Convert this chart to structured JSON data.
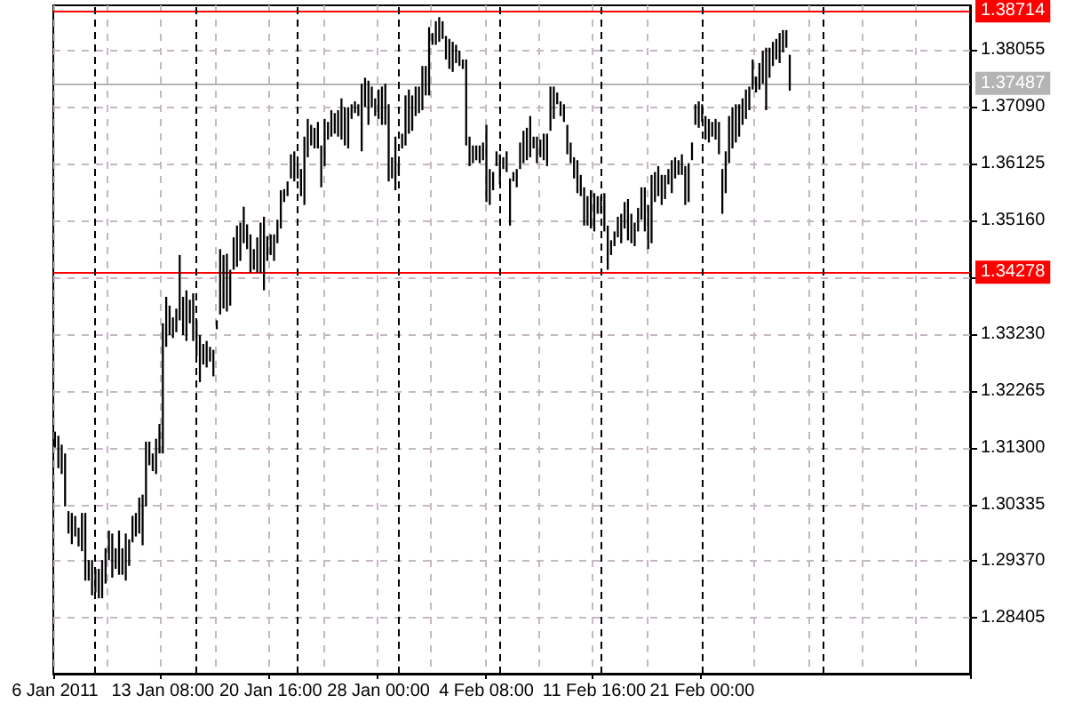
{
  "chart_data": {
    "type": "bar",
    "color": "#000000",
    "grid": true,
    "categories": [
      "6 Jan 2011",
      null,
      null,
      null,
      null,
      null,
      null,
      null,
      null,
      null,
      null,
      null,
      null,
      null,
      null,
      null,
      null,
      null,
      null,
      null,
      null,
      null,
      null,
      null,
      null,
      null,
      null,
      null,
      null,
      null,
      null,
      null,
      "13 Jan 08:00",
      null,
      null,
      null,
      null,
      null,
      null,
      null,
      null,
      null,
      null,
      null,
      null,
      null,
      null,
      null,
      null,
      null,
      null,
      null,
      null,
      null,
      null,
      null,
      null,
      null,
      null,
      null,
      null,
      null,
      null,
      null,
      "20 Jan 16:00",
      null,
      null,
      null,
      null,
      null,
      null,
      null,
      null,
      null,
      null,
      null,
      null,
      null,
      null,
      null,
      null,
      null,
      null,
      null,
      null,
      null,
      null,
      null,
      null,
      null,
      null,
      null,
      null,
      null,
      null,
      null,
      "28 Jan 00:00",
      null,
      null,
      null,
      null,
      null,
      null,
      null,
      null,
      null,
      null,
      null,
      null,
      null,
      null,
      null,
      null,
      null,
      null,
      null,
      null,
      null,
      null,
      null,
      null,
      null,
      null,
      null,
      null,
      null,
      null,
      null,
      "4 Feb 08:00",
      null,
      null,
      null,
      null,
      null,
      null,
      null,
      null,
      null,
      null,
      null,
      null,
      null,
      null,
      null,
      null,
      null,
      null,
      null,
      null,
      null,
      null,
      null,
      null,
      null,
      null,
      null,
      null,
      null,
      null,
      null,
      "11 Feb 16:00",
      null,
      null,
      null,
      null,
      null,
      null,
      null,
      null,
      null,
      null,
      null,
      null,
      null,
      null,
      null,
      null,
      null,
      null,
      null,
      null,
      null,
      null,
      null,
      null,
      null,
      null,
      null,
      null,
      null,
      null,
      null,
      "21 Feb 00:00",
      null,
      null,
      null,
      null,
      null,
      null,
      null,
      null,
      null,
      null,
      null,
      null,
      null,
      null,
      null,
      null,
      null,
      null,
      null,
      null,
      null,
      null,
      null,
      null,
      null,
      null,
      null,
      null,
      null,
      null,
      null,
      null,
      null,
      null,
      null,
      null,
      null,
      null,
      null,
      null,
      null,
      null,
      null,
      null,
      null,
      null,
      null,
      null,
      null,
      null,
      null,
      null,
      null,
      null,
      null,
      null,
      null,
      null,
      null,
      null,
      null,
      null,
      null,
      null,
      null,
      null,
      null,
      null,
      null,
      null,
      null,
      null,
      null,
      null,
      null,
      null,
      null,
      null,
      null
    ],
    "base": [
      1.313,
      1.3095,
      1.3085,
      1.303,
      1.2984,
      1.2966,
      1.2979,
      1.2962,
      1.2954,
      1.2904,
      1.2904,
      1.2879,
      1.2884,
      1.2874,
      1.2874,
      1.2899,
      1.2939,
      1.2909,
      1.2924,
      1.2914,
      1.2914,
      1.2904,
      1.2929,
      1.2969,
      1.2979,
      1.2984,
      1.2964,
      1.303,
      1.31,
      1.309,
      1.3085,
      1.312,
      1.312,
      1.3301,
      1.3321,
      1.3316,
      1.3326,
      1.3346,
      1.3321,
      1.3311,
      1.3341,
      1.3311,
      1.3286,
      1.3241,
      1.3271,
      1.3266,
      1.3276,
      1.3251,
      1.3331,
      1.3356,
      1.3366,
      1.3361,
      1.3371,
      1.3432,
      1.3437,
      1.3447,
      1.3477,
      1.3467,
      1.3427,
      1.3432,
      1.3427,
      1.3427,
      1.3397,
      1.3447,
      1.3457,
      1.3447,
      1.3477,
      1.3502,
      1.3547,
      1.3557,
      1.3587,
      1.3582,
      1.3587,
      1.3557,
      1.3542,
      1.3623,
      1.3643,
      1.3638,
      1.3638,
      1.3572,
      1.3608,
      1.3653,
      1.3658,
      1.3663,
      1.3658,
      1.3653,
      1.3643,
      1.3638,
      1.3688,
      1.3698,
      1.3693,
      1.3633,
      1.3708,
      1.3678,
      1.3708,
      1.3693,
      1.3688,
      1.3678,
      1.3678,
      1.3582,
      1.3587,
      1.3567,
      1.3593,
      1.3638,
      1.3643,
      1.3663,
      1.3668,
      1.3693,
      1.3698,
      1.3703,
      1.3728,
      1.3728,
      1.3814,
      1.3814,
      1.3819,
      1.3824,
      1.3789,
      1.3773,
      1.3768,
      1.3783,
      1.3778,
      1.3773,
      1.3643,
      1.3608,
      1.3613,
      1.3618,
      1.3613,
      1.3618,
      1.3547,
      1.3542,
      1.3567,
      1.3608,
      1.3577,
      1.3603,
      1.3598,
      1.3507,
      1.3582,
      1.3572,
      1.3603,
      1.3613,
      1.3618,
      1.3623,
      1.3638,
      1.3613,
      1.3623,
      1.3618,
      1.3608,
      1.3668,
      1.3688,
      1.3713,
      1.3693,
      1.3683,
      1.3628,
      1.3613,
      1.3587,
      1.3562,
      1.3557,
      1.3507,
      1.3507,
      1.3502,
      1.3497,
      1.3527,
      1.3527,
      1.3497,
      1.3432,
      1.3457,
      1.3472,
      1.3487,
      1.3477,
      1.3502,
      1.3482,
      1.3477,
      1.3472,
      1.3497,
      1.3517,
      1.3497,
      1.3467,
      1.3477,
      1.3547,
      1.3557,
      1.3542,
      1.3552,
      1.3577,
      1.3562,
      1.3587,
      1.3593,
      1.3593,
      1.3542,
      1.3547,
      1.3618,
      1.3678,
      1.3673,
      1.3683,
      1.3653,
      1.3648,
      1.3658,
      1.3653,
      1.3628,
      1.3527,
      1.3562,
      1.3613,
      1.3638,
      1.3648,
      1.3658,
      1.3678,
      1.3688,
      1.3703,
      1.3738,
      1.3733,
      1.3738,
      1.3748,
      1.3703,
      1.3758,
      1.3778,
      1.3789,
      1.3783,
      1.3801,
      1.3809,
      1.3736,
      null,
      null,
      null,
      null,
      null,
      null,
      null,
      null,
      null,
      null,
      null,
      null,
      null,
      null,
      null,
      null,
      null,
      null,
      null,
      null,
      null,
      null,
      null,
      null,
      null,
      null,
      null,
      null,
      null,
      null,
      null,
      null,
      null,
      null,
      null,
      null,
      null,
      null,
      null,
      null,
      null,
      null,
      null,
      null,
      null,
      null,
      null,
      null,
      null,
      null,
      null,
      null,
      null
    ],
    "values": [
      0.0027,
      0.0055,
      0.005,
      0.009,
      0.0038,
      0.0053,
      0.0035,
      0.0032,
      0.0065,
      0.0115,
      0.0035,
      0.006,
      0.004,
      0.005,
      0.0065,
      0.006,
      0.005,
      0.0075,
      0.0035,
      0.0075,
      0.0045,
      0.008,
      0.0045,
      0.0045,
      0.004,
      0.0061,
      0.0086,
      0.011,
      0.004,
      0.003,
      0.006,
      0.005,
      0.0221,
      0.0085,
      0.005,
      0.0035,
      0.004,
      0.0111,
      0.0065,
      0.0086,
      0.004,
      0.0081,
      0.006,
      0.008,
      0.0035,
      0.0045,
      0.0025,
      0.0045,
      0.0015,
      0.0111,
      0.0091,
      0.0098,
      0.0061,
      0.0055,
      0.007,
      0.0065,
      0.0062,
      0.0042,
      0.0065,
      0.0035,
      0.006,
      0.0085,
      0.0125,
      0.0042,
      0.0035,
      0.0045,
      0.004,
      0.0065,
      0.0022,
      0.0025,
      0.0041,
      0.0051,
      0.0026,
      0.0046,
      0.0116,
      0.0065,
      0.0035,
      0.0035,
      0.0045,
      0.0071,
      0.008,
      0.003,
      0.0045,
      0.0035,
      0.0045,
      0.007,
      0.0065,
      0.007,
      0.0025,
      0.002,
      0.002,
      0.0115,
      0.005,
      0.0075,
      0.0035,
      0.003,
      0.005,
      0.0065,
      0.007,
      0.0131,
      0.0036,
      0.0091,
      0.002,
      0.0025,
      0.0085,
      0.0075,
      0.006,
      0.005,
      0.0045,
      0.0075,
      0.005,
      0.0116,
      0.002,
      0.004,
      0.0042,
      0.003,
      0.004,
      0.0051,
      0.0051,
      0.0031,
      0.0026,
      0.0016,
      0.0146,
      0.005,
      0.003,
      0.0025,
      0.003,
      0.003,
      0.0131,
      0.0061,
      0.0031,
      0.0025,
      0.0051,
      0.002,
      0.0035,
      0.008,
      0.0016,
      0.0031,
      0.0045,
      0.0055,
      0.0055,
      0.007,
      0.002,
      0.0045,
      0.003,
      0.0045,
      0.0055,
      0.0075,
      0.0055,
      0.002,
      0.0025,
      0.003,
      0.005,
      0.0035,
      0.0036,
      0.0056,
      0.0036,
      0.0065,
      0.005,
      0.0065,
      0.0065,
      0.003,
      0.003,
      0.0065,
      0.0075,
      0.0025,
      0.0025,
      0.0035,
      0.005,
      0.0045,
      0.007,
      0.005,
      0.004,
      0.004,
      0.0055,
      0.0075,
      0.0075,
      0.0116,
      0.0051,
      0.0051,
      0.0051,
      0.0041,
      0.0026,
      0.0056,
      0.0036,
      0.0025,
      0.0035,
      0.0066,
      0.0066,
      0.003,
      0.0035,
      0.0045,
      0.003,
      0.004,
      0.004,
      0.0025,
      0.0035,
      0.0055,
      0.0076,
      0.0071,
      0.008,
      0.007,
      0.0065,
      0.0055,
      0.0045,
      0.005,
      0.004,
      0.0051,
      0.0027,
      0.0045,
      0.0056,
      0.0106,
      0.0051,
      0.0041,
      0.0035,
      0.0051,
      0.0038,
      0.003,
      0.0061,
      null,
      null,
      null,
      null,
      null,
      null,
      null,
      null,
      null,
      null,
      null,
      null,
      null,
      null,
      null,
      null,
      null,
      null,
      null,
      null,
      null,
      null,
      null,
      null,
      null,
      null,
      null,
      null,
      null,
      null,
      null,
      null,
      null,
      null,
      null,
      null,
      null,
      null,
      null,
      null,
      null,
      null,
      null,
      null,
      null,
      null,
      null,
      null,
      null,
      null,
      null,
      null,
      null
    ],
    "ylim": [
      1.2746,
      1.3881
    ],
    "yticks": [
      1.28405,
      {
        "value": 1.2937,
        "label": "1.29370"
      },
      1.30335,
      {
        "value": 1.313,
        "label": "1.31300"
      },
      1.32265,
      {
        "value": 1.3323,
        "label": "1.33230"
      },
      {
        "value": 1.34195,
        "label": null
      },
      {
        "value": 1.3516,
        "label": "1.35160"
      },
      1.36125,
      {
        "value": 1.3709,
        "label": "1.37090"
      },
      1.38055
    ],
    "ref_lines": [
      {
        "axis": "y",
        "value": 1.38714,
        "label": "1.38714",
        "color": "#ff0000"
      },
      {
        "axis": "y",
        "value": 1.37487,
        "label": "1.37487",
        "color": "#b4b4b4"
      },
      {
        "axis": "y",
        "value": 1.34278,
        "label": "1.34278",
        "color": "#ff0000"
      }
    ]
  }
}
